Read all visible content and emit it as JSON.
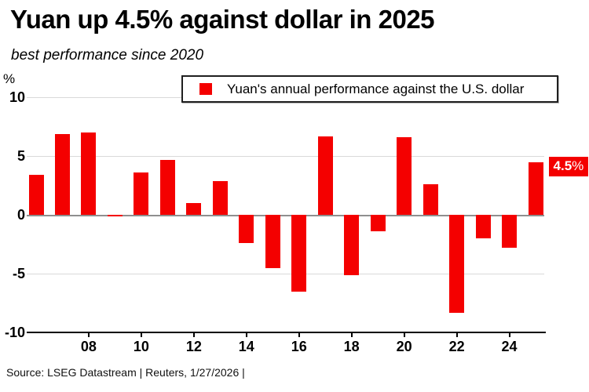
{
  "header": {
    "title": "Yuan up 4.5% against dollar in 2025",
    "subtitle": "best performance since 2020"
  },
  "chart_data": {
    "type": "bar",
    "title": "Yuan's annual performance against the U.S. dollar",
    "unit_label": "%",
    "categories": [
      2006,
      2007,
      2008,
      2009,
      2010,
      2011,
      2012,
      2013,
      2014,
      2015,
      2016,
      2017,
      2018,
      2019,
      2020,
      2021,
      2022,
      2023,
      2024,
      2025
    ],
    "values": [
      3.4,
      6.9,
      7.0,
      -0.1,
      3.6,
      4.7,
      1.0,
      2.9,
      -2.4,
      -4.5,
      -6.5,
      6.7,
      -5.1,
      -1.4,
      6.6,
      2.6,
      -8.3,
      -2.0,
      -2.8,
      4.5
    ],
    "bar_color": "#f40000",
    "ylim": [
      -10,
      10
    ],
    "yticks": [
      10,
      5,
      0,
      -5,
      -10
    ],
    "xticks": [
      {
        "year": 2008,
        "label": "08"
      },
      {
        "year": 2010,
        "label": "10"
      },
      {
        "year": 2012,
        "label": "12"
      },
      {
        "year": 2014,
        "label": "14"
      },
      {
        "year": 2016,
        "label": "16"
      },
      {
        "year": 2018,
        "label": "18"
      },
      {
        "year": 2020,
        "label": "20"
      },
      {
        "year": 2022,
        "label": "22"
      },
      {
        "year": 2024,
        "label": "24"
      }
    ],
    "grid": true,
    "legend_position": "top",
    "legend": {
      "label": "Yuan's annual performance against the U.S. dollar",
      "swatch_color": "#f40000"
    },
    "annotation": {
      "value": "4.5",
      "suffix": "%",
      "year": 2025,
      "bg_color": "#f40000",
      "text_color": "#ffffff"
    }
  },
  "footer": {
    "source": "Source: LSEG Datastream | Reuters, 1/27/2026  |"
  }
}
